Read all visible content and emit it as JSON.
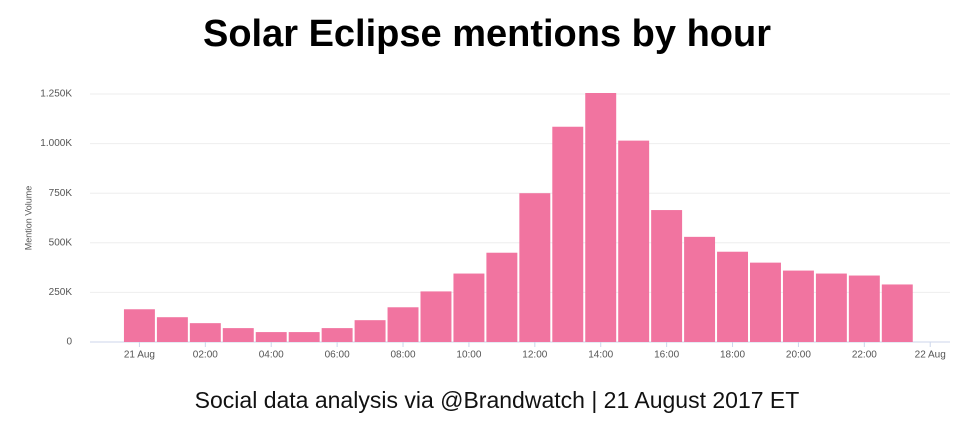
{
  "chart_data": {
    "type": "bar",
    "title": "Solar Eclipse mentions by hour",
    "subtitle": "Social data analysis via @Brandwatch | 21 August 2017 ET",
    "ylabel": "Mention Volume",
    "x": [
      0,
      1,
      2,
      3,
      4,
      5,
      6,
      7,
      8,
      9,
      10,
      11,
      12,
      13,
      14,
      15,
      16,
      17,
      18,
      19,
      20,
      21,
      22,
      23
    ],
    "values": [
      165000,
      125000,
      95000,
      70000,
      50000,
      50000,
      70000,
      110000,
      175000,
      255000,
      345000,
      450000,
      750000,
      1085000,
      1255000,
      1015000,
      665000,
      530000,
      455000,
      400000,
      360000,
      345000,
      335000,
      290000
    ],
    "color": "#f174a0",
    "xlim": [
      -1.5,
      24.6
    ],
    "xticks": [
      {
        "value": 0,
        "label": "21 Aug"
      },
      {
        "value": 2,
        "label": "02:00"
      },
      {
        "value": 4,
        "label": "04:00"
      },
      {
        "value": 6,
        "label": "06:00"
      },
      {
        "value": 8,
        "label": "08:00"
      },
      {
        "value": 10,
        "label": "10:00"
      },
      {
        "value": 12,
        "label": "12:00"
      },
      {
        "value": 14,
        "label": "14:00"
      },
      {
        "value": 16,
        "label": "16:00"
      },
      {
        "value": 18,
        "label": "18:00"
      },
      {
        "value": 20,
        "label": "20:00"
      },
      {
        "value": 22,
        "label": "22:00"
      },
      {
        "value": 24,
        "label": "22 Aug"
      }
    ],
    "ylim": [
      0,
      1250000
    ],
    "yticks": [
      0,
      {
        "value": 250000,
        "label": "250K"
      },
      {
        "value": 500000,
        "label": "500K"
      },
      {
        "value": 750000,
        "label": "750K"
      },
      {
        "value": 1000000,
        "label": "1.000K"
      },
      {
        "value": 1250000,
        "label": "1.250K"
      }
    ],
    "grid": true
  }
}
